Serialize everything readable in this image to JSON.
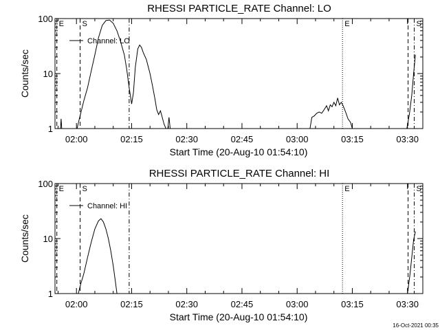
{
  "footer": "16-Oct-2021 00:35",
  "chart_data": [
    {
      "type": "line",
      "title": "RHESSI PARTICLE_RATE Channel: LO",
      "xlabel": "Start Time (20-Aug-10 01:54:10)",
      "ylabel": "Counts/sec",
      "legend": "Channel: LO",
      "legend_position": "top-left",
      "xlim": [
        "01:54:10",
        "03:34:10"
      ],
      "ylim": [
        1,
        100
      ],
      "yscale": "log",
      "xticks": [
        "02:00",
        "02:15",
        "02:30",
        "02:45",
        "03:00",
        "03:15",
        "03:30"
      ],
      "yticks": [
        "1",
        "10",
        "100"
      ],
      "markers": [
        {
          "label": "E",
          "time": "01:54:40",
          "style": "dashed"
        },
        {
          "label": "S",
          "time": "02:01:00",
          "style": "dashed"
        },
        {
          "label": "",
          "time": "02:14:20",
          "style": "dash-dot"
        },
        {
          "label": "E",
          "time": "03:12:20",
          "style": "dotted"
        },
        {
          "label": "",
          "time": "03:30:10",
          "style": "dashed"
        },
        {
          "label": "S",
          "time": "03:31:50",
          "style": "dash-dot"
        }
      ],
      "series": [
        {
          "segments": [
            [
              [
                "01:55:40",
                1.0
              ],
              [
                "01:55:50",
                1.5
              ],
              [
                "01:56:00",
                1.0
              ]
            ],
            [
              [
                "02:00:10",
                1.0
              ],
              [
                "02:00:40",
                1.4
              ],
              [
                "02:01:20",
                2.1
              ],
              [
                "02:02:00",
                3.2
              ],
              [
                "02:03:00",
                5.5
              ],
              [
                "02:04:00",
                11
              ],
              [
                "02:05:00",
                22
              ],
              [
                "02:06:00",
                45
              ],
              [
                "02:07:00",
                75
              ],
              [
                "02:08:00",
                92
              ],
              [
                "02:09:00",
                94
              ],
              [
                "02:10:00",
                82
              ],
              [
                "02:11:00",
                60
              ],
              [
                "02:12:00",
                38
              ],
              [
                "02:13:00",
                22
              ],
              [
                "02:13:40",
                12
              ],
              [
                "02:14:20",
                5.5
              ],
              [
                "02:15:00",
                2.8
              ],
              [
                "02:15:30",
                4.5
              ],
              [
                "02:16:00",
                13
              ],
              [
                "02:16:40",
                28
              ],
              [
                "02:17:10",
                33
              ],
              [
                "02:17:40",
                30
              ],
              [
                "02:18:10",
                24
              ],
              [
                "02:19:00",
                18
              ],
              [
                "02:20:00",
                10
              ],
              [
                "02:20:40",
                6
              ],
              [
                "02:21:20",
                3.5
              ],
              [
                "02:21:50",
                2.2
              ],
              [
                "02:22:20",
                1.8
              ],
              [
                "02:22:50",
                2.1
              ],
              [
                "02:23:20",
                1.6
              ],
              [
                "02:23:50",
                1.2
              ],
              [
                "02:24:20",
                1.0
              ]
            ],
            [
              [
                "02:24:50",
                1.0
              ],
              [
                "02:25:10",
                1.6
              ],
              [
                "02:25:30",
                1.0
              ]
            ],
            [
              [
                "03:03:30",
                1.0
              ],
              [
                "03:04:00",
                1.6
              ],
              [
                "03:04:40",
                1.7
              ],
              [
                "03:05:20",
                1.9
              ],
              [
                "03:06:00",
                2.0
              ],
              [
                "03:06:40",
                1.9
              ],
              [
                "03:07:20",
                2.2
              ],
              [
                "03:08:00",
                2.6
              ],
              [
                "03:08:30",
                2.1
              ],
              [
                "03:09:00",
                2.7
              ],
              [
                "03:09:30",
                2.5
              ],
              [
                "03:10:00",
                3.0
              ],
              [
                "03:10:30",
                2.6
              ],
              [
                "03:11:00",
                3.6
              ],
              [
                "03:11:30",
                2.7
              ],
              [
                "03:12:00",
                3.0
              ],
              [
                "03:12:30",
                2.6
              ],
              [
                "03:13:10",
                2.0
              ],
              [
                "03:13:50",
                1.5
              ],
              [
                "03:14:30",
                1.3
              ],
              [
                "03:15:00",
                1.0
              ]
            ],
            [
              [
                "03:29:50",
                1.0
              ],
              [
                "03:30:30",
                1.8
              ],
              [
                "03:31:10",
                4.0
              ],
              [
                "03:31:40",
                10
              ],
              [
                "03:32:10",
                22
              ]
            ]
          ]
        }
      ]
    },
    {
      "type": "line",
      "title": "RHESSI PARTICLE_RATE Channel: HI",
      "xlabel": "Start Time (20-Aug-10 01:54:10)",
      "ylabel": "Counts/sec",
      "legend": "Channel: HI",
      "legend_position": "top-left",
      "xlim": [
        "01:54:10",
        "03:34:10"
      ],
      "ylim": [
        1,
        100
      ],
      "yscale": "log",
      "xticks": [
        "02:00",
        "02:15",
        "02:30",
        "02:45",
        "03:00",
        "03:15",
        "03:30"
      ],
      "yticks": [
        "1",
        "10",
        "100"
      ],
      "markers": [
        {
          "label": "E",
          "time": "01:54:40",
          "style": "dashed"
        },
        {
          "label": "S",
          "time": "02:01:00",
          "style": "dashed"
        },
        {
          "label": "",
          "time": "02:14:20",
          "style": "dash-dot"
        },
        {
          "label": "E",
          "time": "03:12:20",
          "style": "dotted"
        },
        {
          "label": "",
          "time": "03:30:10",
          "style": "dashed"
        },
        {
          "label": "S",
          "time": "03:31:50",
          "style": "dash-dot"
        }
      ],
      "series": [
        {
          "segments": [
            [
              [
                "02:00:30",
                1.0
              ],
              [
                "02:01:10",
                1.5
              ],
              [
                "02:02:00",
                2.3
              ],
              [
                "02:03:00",
                4.5
              ],
              [
                "02:04:00",
                8.5
              ],
              [
                "02:05:00",
                15
              ],
              [
                "02:06:00",
                21
              ],
              [
                "02:06:40",
                23
              ],
              [
                "02:07:20",
                20
              ],
              [
                "02:08:00",
                15
              ],
              [
                "02:08:40",
                10
              ],
              [
                "02:09:20",
                6
              ],
              [
                "02:10:00",
                3.2
              ],
              [
                "02:10:40",
                1.5
              ],
              [
                "02:11:00",
                1.0
              ]
            ],
            [
              [
                "03:30:00",
                1.0
              ],
              [
                "03:30:40",
                2.2
              ],
              [
                "03:31:10",
                4.5
              ],
              [
                "03:31:40",
                9.5
              ],
              [
                "03:32:10",
                13.5
              ]
            ]
          ]
        }
      ]
    }
  ]
}
